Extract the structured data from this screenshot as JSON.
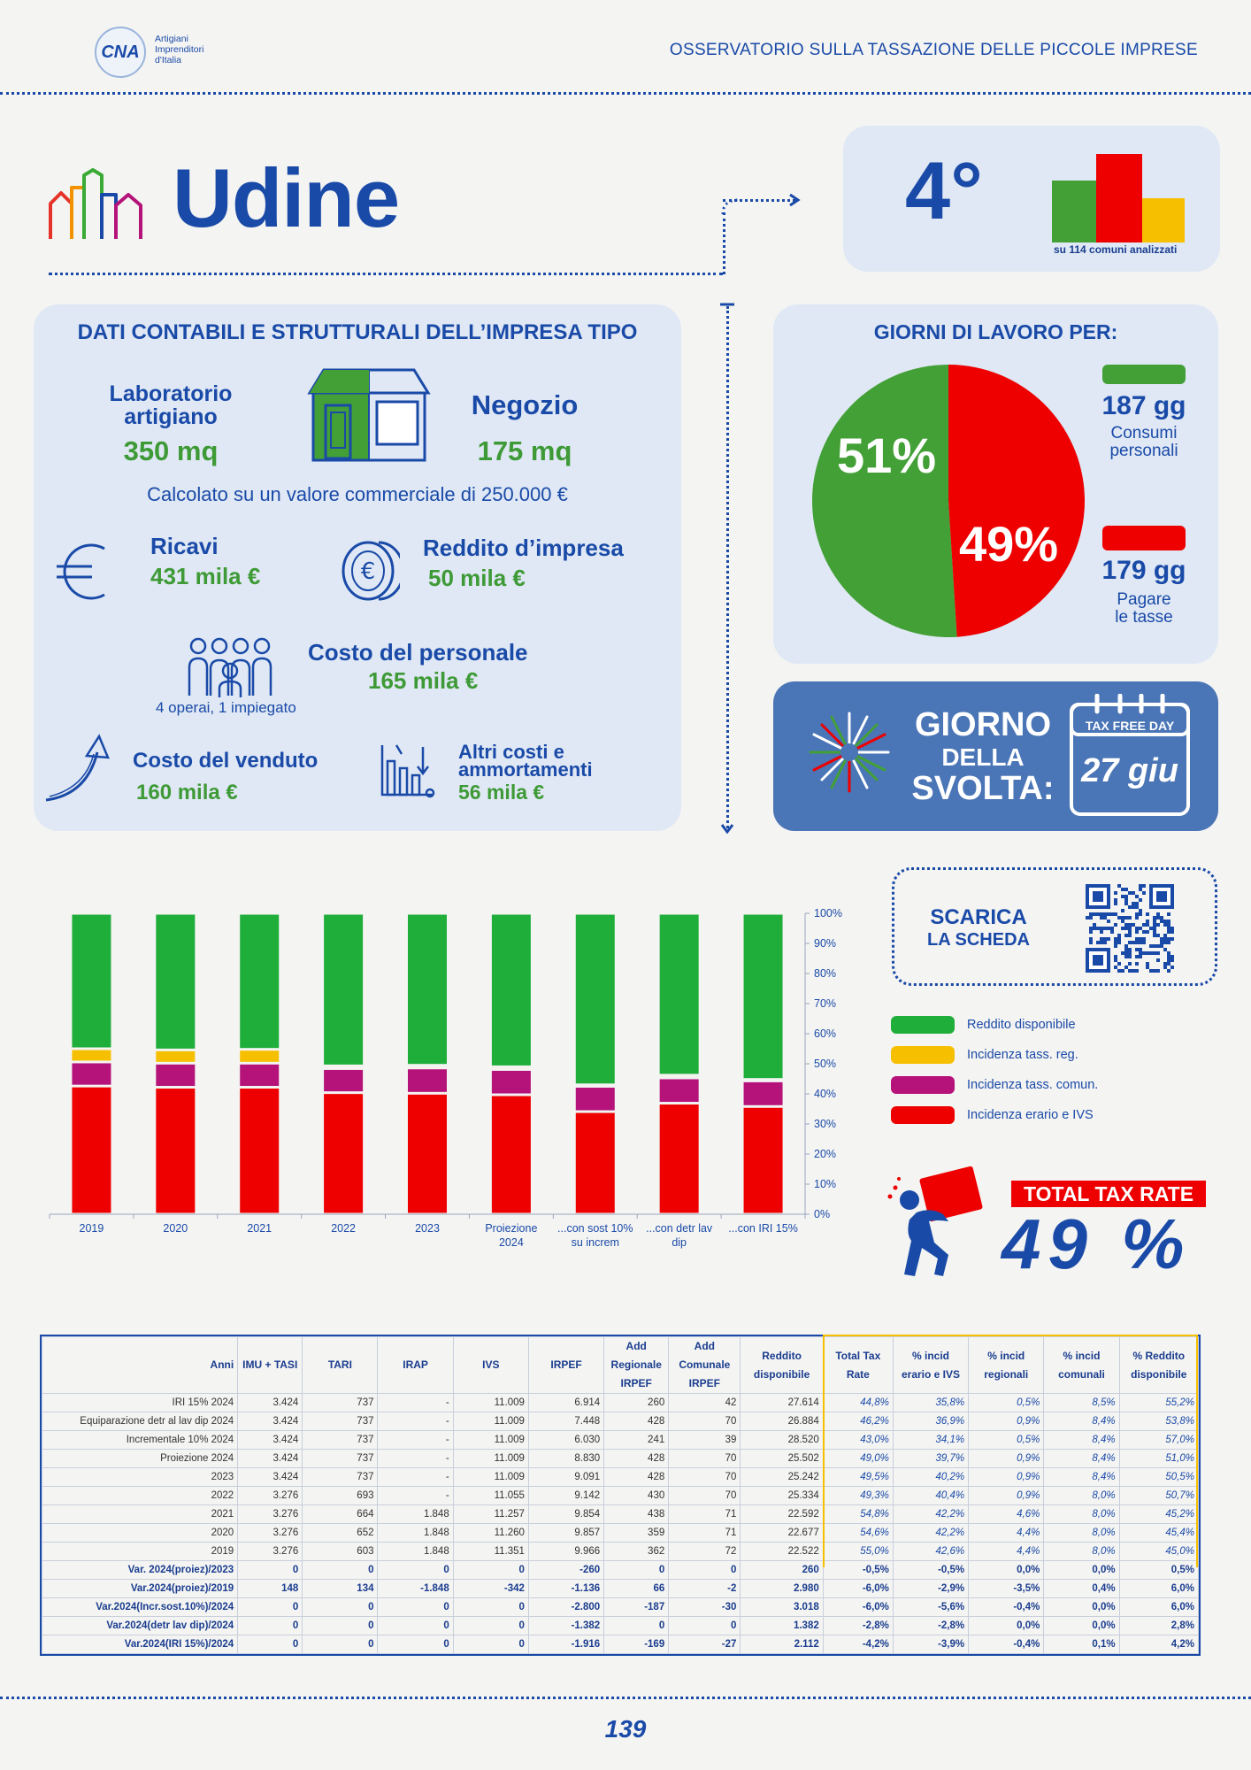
{
  "header": {
    "logo_text": "CNA",
    "logo_sub": [
      "Artigiani",
      "Imprenditori",
      "d'Italia"
    ],
    "title": "OSSERVATORIO SULLA TASSAZIONE DELLE PICCOLE IMPRESE"
  },
  "city": "Udine",
  "ranking": {
    "position": "4°",
    "note": "su 114 comuni analizzati"
  },
  "impresa": {
    "heading": "DATI CONTABILI E STRUTTURALI DELL’IMPRESA TIPO",
    "laboratorio_label_1": "Laboratorio",
    "laboratorio_label_2": "artigiano",
    "laboratorio_value": "350 mq",
    "negozio_label": "Negozio",
    "negozio_value": "175 mq",
    "note": "Calcolato su un valore commerciale di 250.000 €",
    "ricavi_label": "Ricavi",
    "ricavi_value": "431 mila €",
    "reddito_label": "Reddito d’impresa",
    "reddito_value": "50 mila €",
    "personale_label": "Costo del personale",
    "personale_value": "165 mila €",
    "personale_note": "4 operai, 1 impiegato",
    "venduto_label": "Costo del venduto",
    "venduto_value": "160 mila €",
    "altri_label_1": "Altri costi e",
    "altri_label_2": "ammortamenti",
    "altri_value": "56 mila €"
  },
  "giorni": {
    "heading": "GIORNI DI LAVORO PER:",
    "pct_consumi": "51%",
    "pct_tasse": "49%",
    "consumi_value": 51,
    "tasse_value": 49,
    "consumi_days": "187 gg",
    "consumi_label_1": "Consumi",
    "consumi_label_2": "personali",
    "tasse_days": "179 gg",
    "tasse_label_1": "Pagare",
    "tasse_label_2": "le tasse",
    "color_consumi": "#43a036",
    "color_tasse": "#ee0000"
  },
  "svolta": {
    "line1": "GIORNO",
    "line2": "DELLA",
    "line3": "SVOLTA:",
    "calendar_title": "TAX FREE DAY",
    "date": "27 giu"
  },
  "scarica": {
    "line1": "SCARICA",
    "line2": "LA SCHEDA"
  },
  "total_tax": {
    "label": "TOTAL TAX RATE",
    "value": "49 %"
  },
  "chart_data": {
    "type": "bar",
    "stacked": true,
    "categories": [
      "2019",
      "2020",
      "2021",
      "2022",
      "2023",
      "Proiezione 2024",
      "...con sost 10% su increm",
      "...con detr lav dip",
      "...con IRI 15%"
    ],
    "category_lines": [
      [
        "2019"
      ],
      [
        "2020"
      ],
      [
        "2021"
      ],
      [
        "2022"
      ],
      [
        "2023"
      ],
      [
        "Proiezione",
        "2024"
      ],
      [
        "...con sost 10%",
        "su increm"
      ],
      [
        "...con detr lav",
        "dip"
      ],
      [
        "...con IRI 15%"
      ]
    ],
    "series": [
      {
        "name": "Incidenza erario e IVS",
        "color": "#ee0000",
        "values": [
          42.6,
          42.2,
          42.2,
          40.4,
          40.2,
          39.7,
          34.1,
          36.9,
          35.8
        ]
      },
      {
        "name": "Incidenza tass. comun.",
        "color": "#b5127a",
        "values": [
          8.0,
          8.0,
          8.0,
          8.0,
          8.4,
          8.4,
          8.4,
          8.4,
          8.5
        ]
      },
      {
        "name": "Incidenza tass. reg.",
        "color": "#f6c000",
        "values": [
          4.4,
          4.4,
          4.6,
          0.9,
          0.9,
          0.9,
          0.5,
          0.9,
          0.5
        ]
      },
      {
        "name": "Reddito disponibile",
        "color": "#1fae3a",
        "values": [
          45.0,
          45.4,
          45.2,
          50.7,
          50.5,
          51.0,
          57.0,
          53.8,
          55.2
        ]
      }
    ],
    "legend_order": [
      "Reddito disponibile",
      "Incidenza tass. reg.",
      "Incidenza tass. comun.",
      "Incidenza erario e IVS"
    ],
    "ylim": [
      0,
      100
    ],
    "yticks": [
      "0%",
      "10%",
      "20%",
      "30%",
      "40%",
      "50%",
      "60%",
      "70%",
      "80%",
      "90%",
      "100%"
    ],
    "legend_position": "right"
  },
  "table": {
    "headers": [
      "Anni",
      "IMU + TASI",
      "TARI",
      "IRAP",
      "IVS",
      "IRPEF",
      "Add Regionale IRPEF",
      "Add Comunale IRPEF",
      "Reddito disponibile",
      "Total Tax Rate",
      "% incid erario e IVS",
      "% incid regionali",
      "% incid comunali",
      "% Reddito disponibile"
    ],
    "header_lines": [
      [
        "Anni"
      ],
      [
        "IMU + TASI"
      ],
      [
        "TARI"
      ],
      [
        "IRAP"
      ],
      [
        "IVS"
      ],
      [
        "IRPEF"
      ],
      [
        "Add",
        "Regionale",
        "IRPEF"
      ],
      [
        "Add",
        "Comunale",
        "IRPEF"
      ],
      [
        "Reddito",
        "disponibile"
      ],
      [
        "Total Tax",
        "Rate"
      ],
      [
        "% incid",
        "erario e IVS"
      ],
      [
        "% incid",
        "regionali"
      ],
      [
        "% incid",
        "comunali"
      ],
      [
        "% Reddito",
        "disponibile"
      ]
    ],
    "rows": [
      [
        "IRI 15% 2024",
        "3.424",
        "737",
        "-",
        "11.009",
        "6.914",
        "260",
        "42",
        "27.614",
        "44,8%",
        "35,8%",
        "0,5%",
        "8,5%",
        "55,2%"
      ],
      [
        "Equiparazione detr al lav dip 2024",
        "3.424",
        "737",
        "-",
        "11.009",
        "7.448",
        "428",
        "70",
        "26.884",
        "46,2%",
        "36,9%",
        "0,9%",
        "8,4%",
        "53,8%"
      ],
      [
        "Incrementale 10% 2024",
        "3.424",
        "737",
        "-",
        "11.009",
        "6.030",
        "241",
        "39",
        "28.520",
        "43,0%",
        "34,1%",
        "0,5%",
        "8,4%",
        "57,0%"
      ],
      [
        "Proiezione 2024",
        "3.424",
        "737",
        "-",
        "11.009",
        "8.830",
        "428",
        "70",
        "25.502",
        "49,0%",
        "39,7%",
        "0,9%",
        "8,4%",
        "51,0%"
      ],
      [
        "2023",
        "3.424",
        "737",
        "-",
        "11.009",
        "9.091",
        "428",
        "70",
        "25.242",
        "49,5%",
        "40,2%",
        "0,9%",
        "8,4%",
        "50,5%"
      ],
      [
        "2022",
        "3.276",
        "693",
        "-",
        "11.055",
        "9.142",
        "430",
        "70",
        "25.334",
        "49,3%",
        "40,4%",
        "0,9%",
        "8,0%",
        "50,7%"
      ],
      [
        "2021",
        "3.276",
        "664",
        "1.848",
        "11.257",
        "9.854",
        "438",
        "71",
        "22.592",
        "54,8%",
        "42,2%",
        "4,6%",
        "8,0%",
        "45,2%"
      ],
      [
        "2020",
        "3.276",
        "652",
        "1.848",
        "11.260",
        "9.857",
        "359",
        "71",
        "22.677",
        "54,6%",
        "42,2%",
        "4,4%",
        "8,0%",
        "45,4%"
      ],
      [
        "2019",
        "3.276",
        "603",
        "1.848",
        "11.351",
        "9.966",
        "362",
        "72",
        "22.522",
        "55,0%",
        "42,6%",
        "4,4%",
        "8,0%",
        "45,0%"
      ]
    ],
    "var_rows": [
      [
        "Var. 2024(proiez)/2023",
        "0",
        "0",
        "0",
        "0",
        "-260",
        "0",
        "0",
        "260",
        "-0,5%",
        "-0,5%",
        "0,0%",
        "0,0%",
        "0,5%"
      ],
      [
        "Var.2024(proiez)/2019",
        "148",
        "134",
        "-1.848",
        "-342",
        "-1.136",
        "66",
        "-2",
        "2.980",
        "-6,0%",
        "-2,9%",
        "-3,5%",
        "0,4%",
        "6,0%"
      ],
      [
        "Var.2024(Incr.sost.10%)/2024",
        "0",
        "0",
        "0",
        "0",
        "-2.800",
        "-187",
        "-30",
        "3.018",
        "-6,0%",
        "-5,6%",
        "-0,4%",
        "0,0%",
        "6,0%"
      ],
      [
        "Var.2024(detr lav dip)/2024",
        "0",
        "0",
        "0",
        "0",
        "-1.382",
        "0",
        "0",
        "1.382",
        "-2,8%",
        "-2,8%",
        "0,0%",
        "0,0%",
        "2,8%"
      ],
      [
        "Var.2024(IRI 15%)/2024",
        "0",
        "0",
        "0",
        "0",
        "-1.916",
        "-169",
        "-27",
        "2.112",
        "-4,2%",
        "-3,9%",
        "-0,4%",
        "0,1%",
        "4,2%"
      ]
    ],
    "red_cells": [
      [
        1,
        1
      ],
      [
        1,
        2
      ],
      [
        1,
        6
      ],
      [
        1,
        12
      ],
      [
        4,
        12
      ]
    ]
  },
  "page_number": "139"
}
